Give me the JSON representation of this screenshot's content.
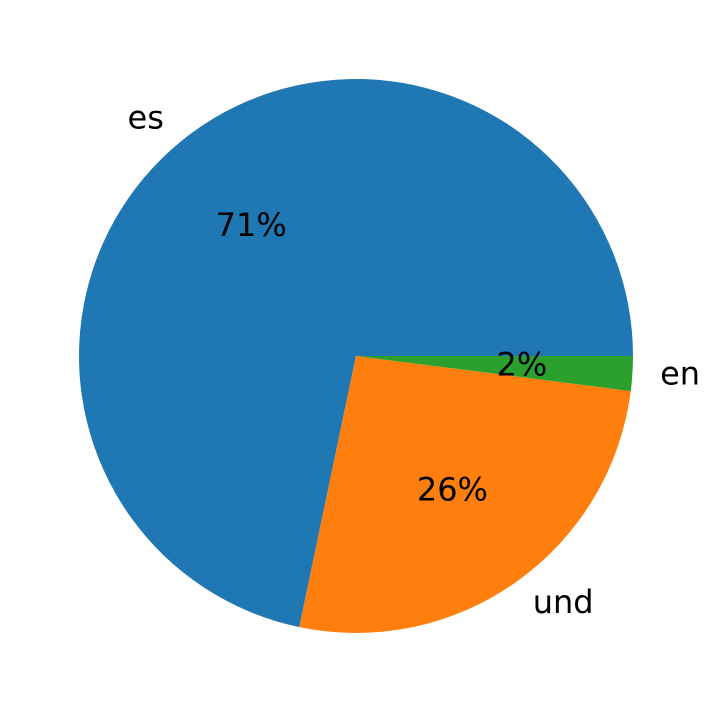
{
  "chart_data": {
    "type": "pie",
    "categories": [
      "es",
      "und",
      "en"
    ],
    "values": [
      71,
      26,
      2
    ],
    "value_labels": [
      "71%",
      "26%",
      "2%"
    ],
    "colors": [
      "#1f77b4",
      "#ff7f0e",
      "#2ca02c"
    ]
  }
}
